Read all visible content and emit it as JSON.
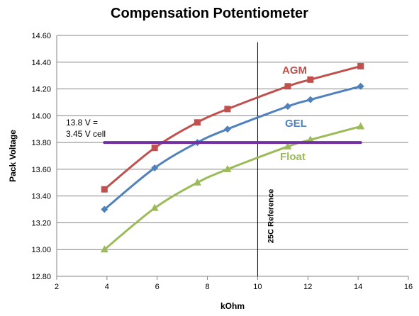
{
  "chart_data": {
    "type": "line",
    "title": "Compensation Potentiometer",
    "xlabel": "kOhm",
    "ylabel": "Pack Voltage",
    "xlim": [
      2,
      16
    ],
    "ylim": [
      12.8,
      14.6
    ],
    "xticks": [
      "2",
      "4",
      "6",
      "8",
      "10",
      "12",
      "14",
      "16"
    ],
    "yticks": [
      "12.80",
      "13.00",
      "13.20",
      "13.40",
      "13.60",
      "13.80",
      "14.00",
      "14.20",
      "14.40",
      "14.60"
    ],
    "grid": "horizontal",
    "series": [
      {
        "name": "AGM",
        "color": "#c0504d",
        "marker": "square",
        "x": [
          3.9,
          5.9,
          7.6,
          8.8,
          11.2,
          12.1,
          14.1
        ],
        "y": [
          13.45,
          13.76,
          13.95,
          14.05,
          14.22,
          14.27,
          14.37
        ]
      },
      {
        "name": "GEL",
        "color": "#4f81bd",
        "marker": "diamond",
        "x": [
          3.9,
          5.9,
          7.6,
          8.8,
          11.2,
          12.1,
          14.1
        ],
        "y": [
          13.3,
          13.61,
          13.8,
          13.9,
          14.07,
          14.12,
          14.22
        ]
      },
      {
        "name": "Float",
        "color": "#9bbb59",
        "marker": "triangle",
        "x": [
          3.9,
          5.9,
          7.6,
          8.8,
          11.2,
          12.1,
          14.1
        ],
        "y": [
          13.0,
          13.31,
          13.5,
          13.6,
          13.77,
          13.82,
          13.92
        ]
      }
    ],
    "reference_line": {
      "y": 13.8,
      "x_range": [
        3.9,
        14.1
      ],
      "color": "#7030a0",
      "label_lines": [
        "13.8 V =",
        "3.45 V cell"
      ]
    },
    "vertical_reference": {
      "x": 10,
      "y_range": [
        12.8,
        14.55
      ],
      "label": "25C Reference"
    }
  }
}
